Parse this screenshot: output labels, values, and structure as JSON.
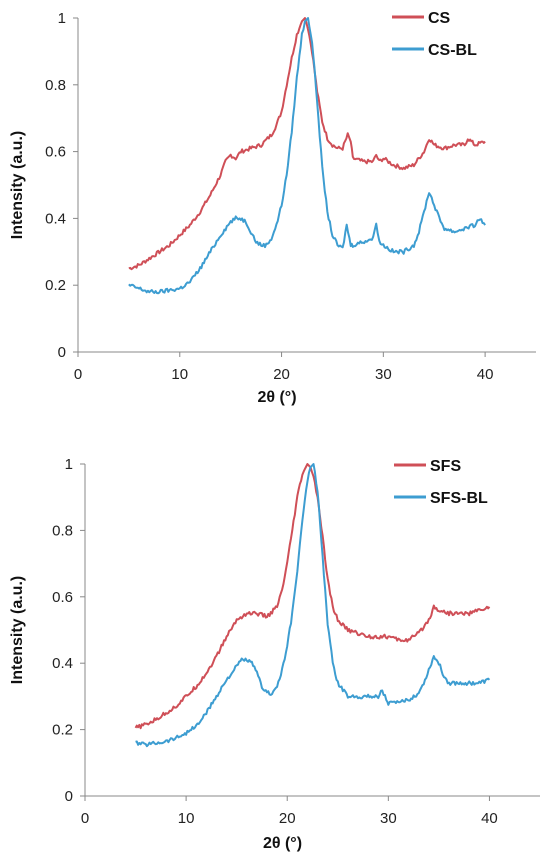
{
  "chart_data": [
    {
      "type": "line",
      "title": "",
      "xlabel": "2θ (°)",
      "ylabel": "Intensity (a.u.)",
      "xlim": [
        0,
        45
      ],
      "ylim": [
        0,
        1
      ],
      "xticks": [
        0,
        10,
        20,
        30,
        40
      ],
      "yticks": [
        0,
        0.2,
        0.4,
        0.6,
        0.8,
        1
      ],
      "xtick_labels": [
        "0",
        "10",
        "20",
        "30",
        "40"
      ],
      "ytick_labels": [
        "0",
        "0.2",
        "0.4",
        "0.6",
        "0.8",
        "1"
      ],
      "legend_position": "top-right",
      "grid": false,
      "series": [
        {
          "name": "CS",
          "color": "#cf4f57",
          "x": [
            5,
            6,
            7,
            8,
            9,
            10,
            11,
            12,
            13,
            14,
            14.5,
            15,
            15.5,
            16,
            17,
            18,
            19,
            19.5,
            20,
            20.5,
            21,
            21.5,
            22,
            22.3,
            22.6,
            23,
            23.5,
            24,
            24.5,
            25,
            25.5,
            26,
            26.5,
            26.8,
            27,
            28,
            29,
            29.3,
            29.6,
            30,
            31,
            32,
            33,
            34,
            34.5,
            35,
            36,
            37,
            38,
            38.3,
            39,
            40
          ],
          "y": [
            0.25,
            0.26,
            0.28,
            0.3,
            0.32,
            0.35,
            0.38,
            0.42,
            0.47,
            0.53,
            0.57,
            0.59,
            0.58,
            0.6,
            0.61,
            0.62,
            0.65,
            0.68,
            0.72,
            0.8,
            0.88,
            0.95,
            0.99,
            1.0,
            0.97,
            0.9,
            0.78,
            0.69,
            0.64,
            0.62,
            0.61,
            0.61,
            0.65,
            0.63,
            0.58,
            0.57,
            0.57,
            0.59,
            0.57,
            0.58,
            0.56,
            0.55,
            0.56,
            0.6,
            0.64,
            0.62,
            0.61,
            0.62,
            0.62,
            0.64,
            0.62,
            0.63
          ]
        },
        {
          "name": "CS-BL",
          "color": "#3d9dd1",
          "x": [
            5,
            6,
            7,
            8,
            9,
            10,
            11,
            12,
            13,
            14,
            15,
            15.5,
            16,
            16.5,
            17,
            17.5,
            18,
            18.5,
            19,
            19.5,
            20,
            20.5,
            21,
            21.5,
            22,
            22.3,
            22.6,
            23,
            23.5,
            24,
            24.5,
            25,
            25.5,
            26,
            26.4,
            26.8,
            27,
            28,
            29,
            29.3,
            29.6,
            30,
            31,
            32,
            33,
            33.5,
            34,
            34.5,
            35,
            35.5,
            36,
            37,
            38,
            39,
            39.5,
            40
          ],
          "y": [
            0.2,
            0.19,
            0.18,
            0.18,
            0.185,
            0.19,
            0.21,
            0.25,
            0.3,
            0.35,
            0.39,
            0.4,
            0.4,
            0.39,
            0.36,
            0.33,
            0.32,
            0.32,
            0.34,
            0.38,
            0.44,
            0.53,
            0.66,
            0.82,
            0.95,
            0.99,
            1.0,
            0.93,
            0.75,
            0.55,
            0.42,
            0.35,
            0.32,
            0.31,
            0.38,
            0.32,
            0.32,
            0.33,
            0.34,
            0.39,
            0.33,
            0.32,
            0.3,
            0.3,
            0.32,
            0.36,
            0.42,
            0.48,
            0.44,
            0.4,
            0.37,
            0.36,
            0.37,
            0.38,
            0.4,
            0.38
          ]
        }
      ]
    },
    {
      "type": "line",
      "title": "",
      "xlabel": "2θ (°)",
      "ylabel": "Intensity (a.u.)",
      "xlim": [
        0,
        45
      ],
      "ylim": [
        0,
        1
      ],
      "xticks": [
        0,
        10,
        20,
        30,
        40
      ],
      "yticks": [
        0,
        0.2,
        0.4,
        0.6,
        0.8,
        1
      ],
      "xtick_labels": [
        "0",
        "10",
        "20",
        "30",
        "40"
      ],
      "ytick_labels": [
        "0",
        "0.2",
        "0.4",
        "0.6",
        "0.8",
        "1"
      ],
      "legend_position": "top-right",
      "grid": false,
      "series": [
        {
          "name": "SFS",
          "color": "#cf4f57",
          "x": [
            5,
            6,
            7,
            8,
            9,
            10,
            11,
            12,
            13,
            14,
            15,
            16,
            17,
            18,
            19,
            19.5,
            20,
            20.5,
            21,
            21.5,
            22,
            22.3,
            22.6,
            23,
            23.5,
            24,
            24.5,
            25,
            26,
            27,
            28,
            29,
            30,
            31,
            32,
            33,
            34,
            34.5,
            35,
            36,
            37,
            38,
            39,
            40
          ],
          "y": [
            0.205,
            0.215,
            0.23,
            0.25,
            0.27,
            0.3,
            0.33,
            0.37,
            0.42,
            0.48,
            0.53,
            0.55,
            0.55,
            0.54,
            0.57,
            0.62,
            0.7,
            0.8,
            0.9,
            0.97,
            1.0,
            0.99,
            0.96,
            0.9,
            0.78,
            0.65,
            0.57,
            0.53,
            0.5,
            0.49,
            0.48,
            0.48,
            0.48,
            0.47,
            0.47,
            0.49,
            0.53,
            0.57,
            0.56,
            0.55,
            0.55,
            0.55,
            0.56,
            0.57
          ]
        },
        {
          "name": "SFS-BL",
          "color": "#3d9dd1",
          "x": [
            5,
            6,
            7,
            8,
            9,
            10,
            11,
            12,
            13,
            14,
            15,
            15.5,
            16,
            16.5,
            17,
            17.5,
            18,
            18.5,
            19,
            19.5,
            20,
            20.5,
            21,
            21.5,
            22,
            22.3,
            22.6,
            23,
            23.5,
            24,
            24.5,
            25,
            26,
            27,
            28,
            29,
            29.4,
            29.8,
            30,
            31,
            32,
            33,
            33.5,
            34,
            34.5,
            35,
            35.5,
            36,
            37,
            38,
            39,
            40
          ],
          "y": [
            0.16,
            0.155,
            0.16,
            0.165,
            0.175,
            0.19,
            0.21,
            0.25,
            0.3,
            0.35,
            0.39,
            0.41,
            0.41,
            0.4,
            0.37,
            0.33,
            0.31,
            0.31,
            0.33,
            0.38,
            0.45,
            0.55,
            0.68,
            0.83,
            0.95,
            0.99,
            1.0,
            0.92,
            0.72,
            0.52,
            0.4,
            0.34,
            0.3,
            0.3,
            0.3,
            0.3,
            0.32,
            0.29,
            0.28,
            0.28,
            0.29,
            0.31,
            0.34,
            0.38,
            0.42,
            0.4,
            0.36,
            0.34,
            0.34,
            0.34,
            0.34,
            0.35
          ]
        }
      ]
    }
  ]
}
